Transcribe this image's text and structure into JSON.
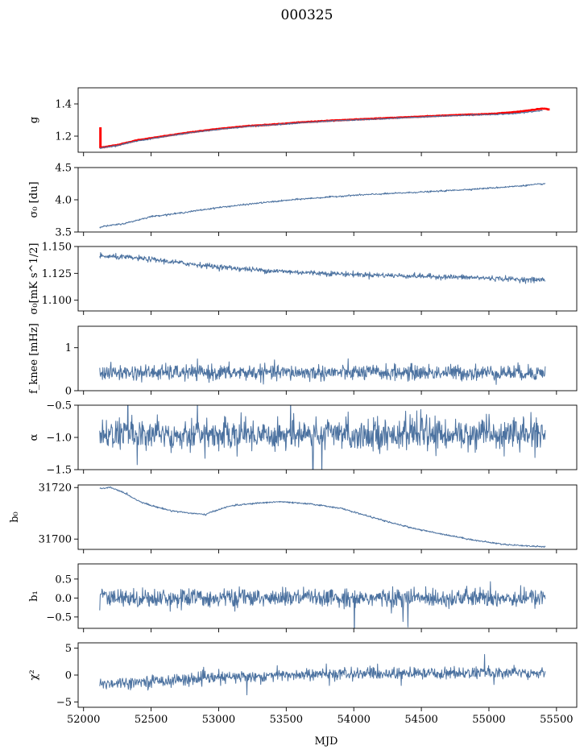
{
  "figure": {
    "title": "000325",
    "xlabel": "MJD"
  },
  "chart_data": {
    "type": "line",
    "x_axis": {
      "label": "MJD",
      "lim": [
        51960,
        55650
      ],
      "ticks": [
        52000,
        52500,
        53000,
        53500,
        54000,
        54500,
        55000,
        55500
      ]
    },
    "x_range_data": [
      52120,
      55420
    ],
    "panels": [
      {
        "id": "g",
        "ylabel": "g",
        "ylim": [
          1.1,
          1.5
        ],
        "ticks": [
          1.2,
          1.4
        ],
        "series": [
          {
            "name": "g-fit",
            "color": "#ff0000",
            "width": 2.6,
            "x": [
              52120,
              52250,
              52400,
              52600,
              52800,
              53000,
              53200,
              53400,
              53600,
              53800,
              54000,
              54200,
              54400,
              54600,
              54800,
              55000,
              55200,
              55300,
              55400,
              55450
            ],
            "y": [
              1.128,
              1.145,
              1.175,
              1.2,
              1.225,
              1.245,
              1.262,
              1.272,
              1.285,
              1.295,
              1.303,
              1.31,
              1.318,
              1.325,
              1.332,
              1.337,
              1.35,
              1.36,
              1.372,
              1.365
            ],
            "spikes": [
              {
                "x": 52125,
                "y": [
                  1.125,
                  1.255
                ]
              }
            ]
          },
          {
            "name": "g-data",
            "color": "#4c72a0",
            "width": 1.0,
            "x": [
              52120,
              52250,
              52400,
              52600,
              52800,
              53000,
              53200,
              53400,
              53600,
              53800,
              54000,
              54200,
              54400,
              54600,
              54800,
              55000,
              55200,
              55300,
              55400
            ],
            "y": [
              1.125,
              1.142,
              1.17,
              1.197,
              1.222,
              1.242,
              1.259,
              1.27,
              1.282,
              1.292,
              1.3,
              1.307,
              1.315,
              1.322,
              1.329,
              1.334,
              1.34,
              1.35,
              1.36
            ]
          }
        ]
      },
      {
        "id": "sigma0-du",
        "ylabel": "σ₀ [du]",
        "ylim": [
          3.5,
          4.5
        ],
        "ticks": [
          3.5,
          4.0,
          4.5
        ],
        "series": [
          {
            "name": "sigma0-du",
            "color": "#4c72a0",
            "width": 1.0,
            "x": [
              52120,
              52300,
              52500,
              52700,
              53000,
              53300,
              53600,
              54000,
              54300,
              54600,
              55000,
              55200,
              55420
            ],
            "y": [
              3.58,
              3.63,
              3.74,
              3.79,
              3.88,
              3.95,
              4.01,
              4.07,
              4.1,
              4.13,
              4.18,
              4.21,
              4.25
            ]
          }
        ]
      },
      {
        "id": "sigma0-mk",
        "ylabel": "σ₀[mK s^1/2]",
        "ylim": [
          1.09,
          1.15
        ],
        "ticks": [
          1.1,
          1.125,
          1.15
        ],
        "series": [
          {
            "name": "sigma0-mk",
            "color": "#4c72a0",
            "width": 1.0,
            "x": [
              52120,
              52300,
              52500,
              52700,
              53000,
              53300,
              53600,
              54000,
              54300,
              54600,
              54900,
              55100,
              55300,
              55420
            ],
            "y": [
              1.141,
              1.14,
              1.138,
              1.135,
              1.131,
              1.128,
              1.126,
              1.124,
              1.123,
              1.122,
              1.121,
              1.12,
              1.119,
              1.119
            ]
          }
        ]
      },
      {
        "id": "fknee",
        "ylabel": "f_knee [mHz]",
        "ylim": [
          0,
          1.5
        ],
        "ticks": [
          0,
          1
        ],
        "series": [
          {
            "name": "fknee",
            "color": "#4c72a0",
            "width": 1.0,
            "x": [
              52120,
              55420
            ],
            "y": [
              0.42,
              0.42
            ]
          }
        ]
      },
      {
        "id": "alpha",
        "ylabel": "α",
        "ylim": [
          -1.5,
          -0.5
        ],
        "ticks": [
          -1.5,
          -1.0,
          -0.5
        ],
        "series": [
          {
            "name": "alpha",
            "color": "#4c72a0",
            "width": 1.0,
            "x": [
              52120,
              55420
            ],
            "y": [
              -0.95,
              -0.95
            ]
          }
        ]
      },
      {
        "id": "b0",
        "ylabel": "b₀",
        "ylim": [
          31696,
          31721
        ],
        "ticks": [
          31700,
          31720
        ],
        "series": [
          {
            "name": "b0",
            "color": "#4c72a0",
            "width": 1.0,
            "x": [
              52120,
              52200,
              52300,
              52400,
              52500,
              52650,
              52800,
              52900,
              53000,
              53100,
              53300,
              53450,
              53700,
              53900,
              54100,
              54300,
              54500,
              54700,
              54900,
              55100,
              55300,
              55420
            ],
            "y": [
              31719.5,
              31720,
              31718,
              31715,
              31713,
              31711,
              31710,
              31709.5,
              31711.5,
              31713,
              31714,
              31714.5,
              31713.5,
              31712,
              31709,
              31706,
              31703.5,
              31701.5,
              31699.5,
              31698,
              31697.3,
              31697
            ]
          }
        ]
      },
      {
        "id": "b1",
        "ylabel": "b₁",
        "ylim": [
          -0.8,
          0.9
        ],
        "ticks": [
          -0.5,
          0.0,
          0.5
        ],
        "series": [
          {
            "name": "b1",
            "color": "#4c72a0",
            "width": 1.0,
            "x": [
              52120,
              55420
            ],
            "y": [
              0.0,
              0.0
            ]
          }
        ]
      },
      {
        "id": "chi2",
        "ylabel": "χ²",
        "ylim": [
          -6,
          6
        ],
        "ticks": [
          -5,
          0,
          5
        ],
        "series": [
          {
            "name": "chi2",
            "color": "#4c72a0",
            "width": 1.0,
            "x": [
              52120,
              52600,
              53000,
              53500,
              54000,
              54500,
              55000,
              55420
            ],
            "y": [
              -1.6,
              -1.0,
              -0.5,
              0.0,
              0.2,
              0.3,
              0.4,
              0.5
            ]
          }
        ]
      }
    ]
  }
}
